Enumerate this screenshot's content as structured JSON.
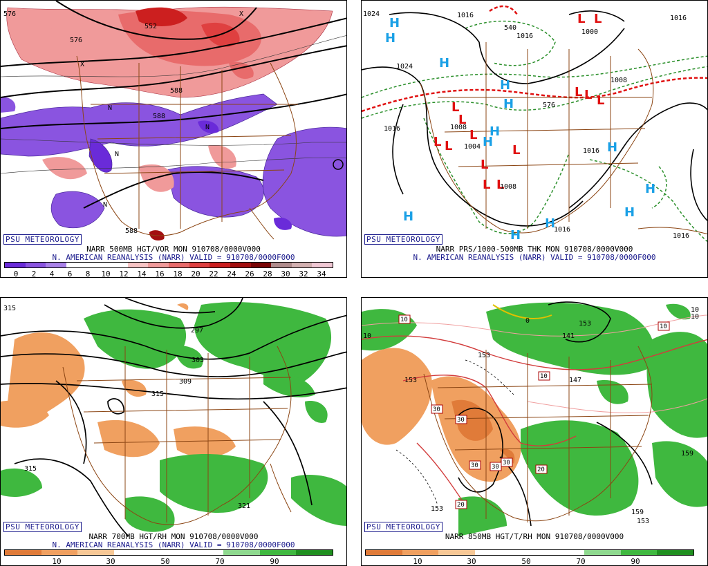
{
  "panels": {
    "vor": {
      "psu": "PSU METEOROLOGY",
      "line1": "NARR 500MB HGT/VOR MON 910708/0000V000",
      "line2": "N. AMERICAN REANALYSIS (NARR) VALID = 910708/0000F000",
      "colorbar": [
        "#6a2bd9",
        "#8a54e0",
        "#a982e8",
        "#ffffff",
        "#ffffff",
        "#ffffff",
        "#f7c4c4",
        "#f09a9a",
        "#e86b6b",
        "#df4040",
        "#cc1f1f",
        "#a30f0f",
        "#7a0505",
        "#b08c8c",
        "#d2b0b0",
        "#f0c8d4"
      ],
      "ticks": [
        "0",
        "2",
        "4",
        "6",
        "8",
        "10",
        "12",
        "14",
        "16",
        "18",
        "20",
        "22",
        "24",
        "26",
        "28",
        "30",
        "32",
        "34"
      ],
      "labels": [
        "576",
        "552",
        "588",
        "588",
        "588",
        "576",
        "N",
        "N",
        "N",
        "N",
        "X",
        "X"
      ]
    },
    "thk": {
      "psu": "PSU METEOROLOGY",
      "line1": "NARR PRS/1000-500MB THK MON 910708/0000V000",
      "line2": "N. AMERICAN REANALYSIS (NARR) VALID = 910708/0000F000",
      "labels": [
        "1024",
        "1016",
        "540",
        "1016",
        "1000",
        "1024",
        "1008",
        "1016",
        "1008",
        "1004",
        "1016",
        "1016",
        "1008",
        "1016",
        "576",
        "1016"
      ],
      "highs": [
        "H",
        "H",
        "H",
        "H",
        "H",
        "H",
        "H",
        "H",
        "H",
        "H",
        "H",
        "H",
        "H"
      ],
      "lows": [
        "L",
        "L",
        "L",
        "L",
        "L",
        "L",
        "L",
        "L",
        "L",
        "L",
        "L",
        "L",
        "L",
        "L"
      ]
    },
    "rh700": {
      "psu": "PSU METEOROLOGY",
      "line1": "NARR 700MB HGT/RH MON 910708/0000V000",
      "line2": "N. AMERICAN REANALYSIS (NARR) VALID = 910708/0000F000",
      "colorbar": [
        "#e07b39",
        "#f0a060",
        "#f7c896",
        "#ffffff",
        "#ffffff",
        "#ffffff",
        "#8fd98f",
        "#3fb83f",
        "#1f8f1f"
      ],
      "ticks": [
        "10",
        "30",
        "50",
        "70",
        "90"
      ],
      "labels": [
        "315",
        "297",
        "303",
        "309",
        "315",
        "315",
        "321"
      ]
    },
    "t850": {
      "psu": "PSU METEOROLOGY",
      "line1": "NARR 850MB HGT/T/RH MON 910708/0000V000",
      "colorbar": [
        "#e07b39",
        "#f0a060",
        "#f7c896",
        "#ffffff",
        "#ffffff",
        "#ffffff",
        "#8fd98f",
        "#3fb83f",
        "#1f8f1f"
      ],
      "ticks": [
        "10",
        "30",
        "50",
        "70",
        "90"
      ],
      "labels": [
        "10",
        "0",
        "10",
        "141",
        "147",
        "153",
        "10",
        "153",
        "159",
        "153",
        "159",
        "153",
        "153"
      ],
      "boxes": [
        "30",
        "30",
        "30",
        "30",
        "30",
        "20",
        "20",
        "10",
        "10",
        "10"
      ]
    }
  }
}
